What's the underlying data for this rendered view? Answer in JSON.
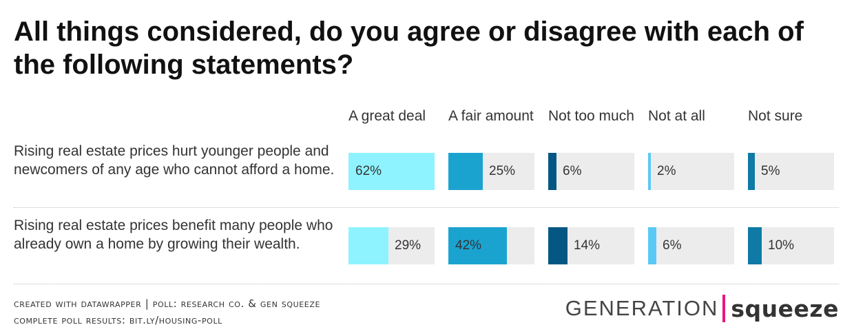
{
  "chart_data": {
    "type": "bar",
    "layout": "small-multiples",
    "title": "All things considered, do you agree or disagree with each of the following statements?",
    "scale_max": 62,
    "categories": [
      "Rising real estate prices hurt younger people and newcomers of any age who cannot afford a home.",
      "Rising real estate prices benefit many people who already own a home by growing their wealth."
    ],
    "series": [
      {
        "name": "A great deal",
        "color": "#8ef3ff",
        "values": [
          62,
          29
        ]
      },
      {
        "name": "A fair amount",
        "color": "#1ba3d0",
        "values": [
          25,
          42
        ]
      },
      {
        "name": "Not too much",
        "color": "#055783",
        "values": [
          6,
          14
        ]
      },
      {
        "name": "Not at all",
        "color": "#5bc9f5",
        "values": [
          2,
          6
        ]
      },
      {
        "name": "Not sure",
        "color": "#0e7aa5",
        "values": [
          5,
          10
        ]
      }
    ],
    "value_suffix": "%"
  },
  "footer": {
    "line1": "Created with Datawrapper | Poll: Research Co. & Gen Squeeze",
    "line2": "Complete poll results: bit.ly/housing-poll"
  },
  "logo": {
    "left": "GENERATION",
    "right": "squeeze",
    "accent": "#e6177a"
  }
}
